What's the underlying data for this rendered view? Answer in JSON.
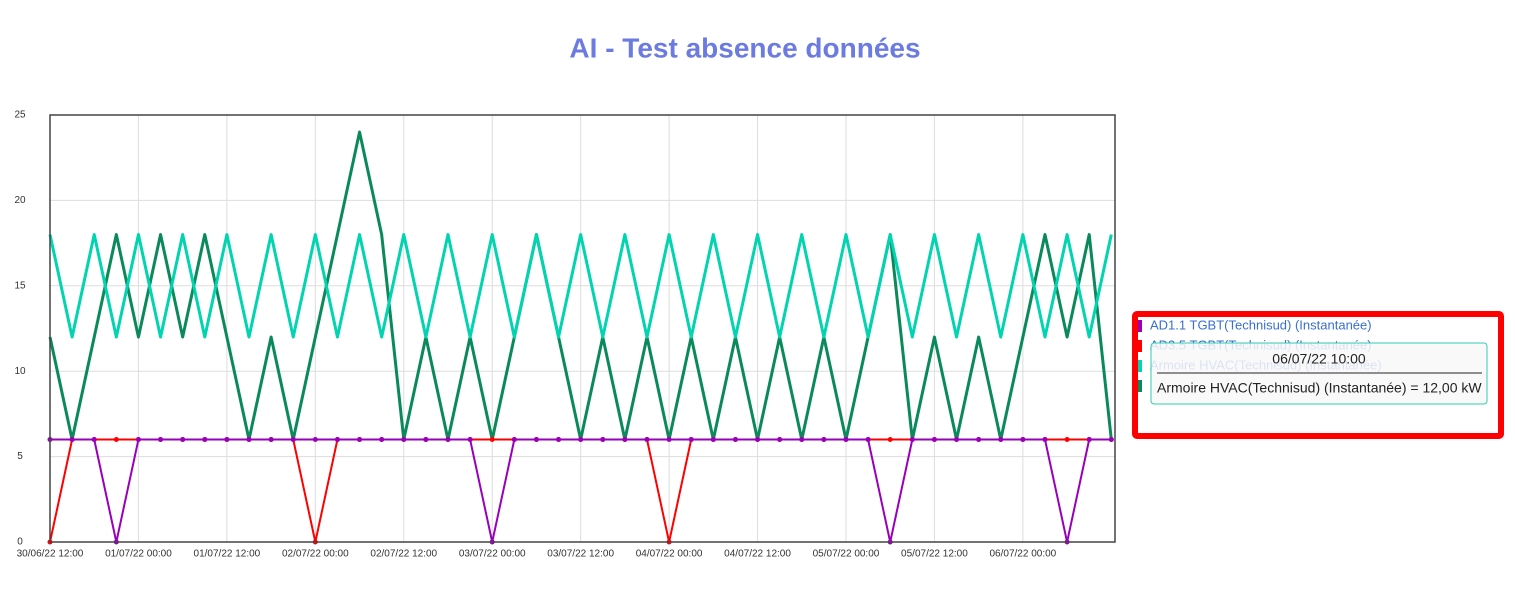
{
  "chart_data": {
    "type": "line",
    "title": "AI - Test absence données",
    "x": [
      "2022-06-30T12:00",
      "2022-06-30T15:00",
      "2022-06-30T18:00",
      "2022-06-30T21:00",
      "2022-07-01T00:00",
      "2022-07-01T03:00",
      "2022-07-01T06:00",
      "2022-07-01T09:00",
      "2022-07-01T12:00",
      "2022-07-01T15:00",
      "2022-07-01T18:00",
      "2022-07-01T21:00",
      "2022-07-02T00:00",
      "2022-07-02T03:00",
      "2022-07-02T06:00",
      "2022-07-02T09:00",
      "2022-07-02T12:00",
      "2022-07-02T15:00",
      "2022-07-02T18:00",
      "2022-07-02T21:00",
      "2022-07-03T00:00",
      "2022-07-03T03:00",
      "2022-07-03T06:00",
      "2022-07-03T09:00",
      "2022-07-03T12:00",
      "2022-07-03T15:00",
      "2022-07-03T18:00",
      "2022-07-03T21:00",
      "2022-07-04T00:00",
      "2022-07-04T03:00",
      "2022-07-04T06:00",
      "2022-07-04T09:00",
      "2022-07-04T12:00",
      "2022-07-04T15:00",
      "2022-07-04T18:00",
      "2022-07-04T21:00",
      "2022-07-05T00:00",
      "2022-07-05T03:00",
      "2022-07-05T06:00",
      "2022-07-05T09:00",
      "2022-07-05T12:00",
      "2022-07-05T15:00",
      "2022-07-05T18:00",
      "2022-07-05T21:00",
      "2022-07-06T00:00",
      "2022-07-06T03:00",
      "2022-07-06T06:00",
      "2022-07-06T09:00",
      "2022-07-06T12:00"
    ],
    "series": [
      {
        "name": "AD1.1 TGBT(Technisud) (Instantanée)",
        "color": "#9900bb",
        "marker": true,
        "values": [
          6,
          6,
          6,
          0,
          6,
          6,
          6,
          6,
          6,
          6,
          6,
          6,
          6,
          6,
          6,
          6,
          6,
          6,
          6,
          6,
          0,
          6,
          6,
          6,
          6,
          6,
          6,
          6,
          6,
          6,
          6,
          6,
          6,
          6,
          6,
          6,
          6,
          6,
          0,
          6,
          6,
          6,
          6,
          6,
          6,
          6,
          0,
          6,
          6
        ]
      },
      {
        "name": "AD3.5 TGBT(Technisud) (Instantanée)",
        "color": "#ff0000",
        "marker": true,
        "values": [
          0,
          6,
          6,
          6,
          6,
          6,
          6,
          6,
          6,
          6,
          6,
          6,
          0,
          6,
          6,
          6,
          6,
          6,
          6,
          6,
          6,
          6,
          6,
          6,
          6,
          6,
          6,
          6,
          0,
          6,
          6,
          6,
          6,
          6,
          6,
          6,
          6,
          6,
          6,
          6,
          6,
          6,
          6,
          6,
          6,
          6,
          6,
          6,
          6
        ]
      },
      {
        "name": "Armoire HVAC(Technisud) (Instantanée)",
        "color": "#00d4b0",
        "marker": false,
        "values": [
          18,
          12,
          18,
          12,
          18,
          12,
          18,
          12,
          18,
          12,
          18,
          12,
          18,
          12,
          18,
          12,
          18,
          12,
          18,
          12,
          18,
          12,
          18,
          12,
          18,
          12,
          18,
          12,
          18,
          12,
          18,
          12,
          18,
          12,
          18,
          12,
          18,
          12,
          18,
          12,
          18,
          12,
          18,
          12,
          18,
          12,
          18,
          12,
          18
        ]
      },
      {
        "color": "#0a8a5a",
        "marker": false,
        "values": [
          12,
          6,
          12,
          18,
          12,
          18,
          12,
          18,
          12,
          6,
          12,
          6,
          12,
          18,
          24,
          18,
          6,
          12,
          6,
          12,
          6,
          12,
          18,
          12,
          6,
          12,
          6,
          12,
          6,
          12,
          6,
          12,
          6,
          12,
          6,
          12,
          6,
          12,
          18,
          6,
          12,
          6,
          12,
          6,
          12,
          18,
          12,
          18,
          6
        ]
      }
    ],
    "xlim": [
      "2022-06-30T12:00",
      "2022-07-06T12:30"
    ],
    "xticks": [
      {
        "value": "2022-06-30T12:00",
        "label": "30/06/22 12:00"
      },
      {
        "value": "2022-07-01T00:00",
        "label": "01/07/22 00:00"
      },
      {
        "value": "2022-07-01T12:00",
        "label": "01/07/22 12:00"
      },
      {
        "value": "2022-07-02T00:00",
        "label": "02/07/22 00:00"
      },
      {
        "value": "2022-07-02T12:00",
        "label": "02/07/22 12:00"
      },
      {
        "value": "2022-07-03T00:00",
        "label": "03/07/22 00:00"
      },
      {
        "value": "2022-07-03T12:00",
        "label": "03/07/22 12:00"
      },
      {
        "value": "2022-07-04T00:00",
        "label": "04/07/22 00:00"
      },
      {
        "value": "2022-07-04T12:00",
        "label": "04/07/22 12:00"
      },
      {
        "value": "2022-07-05T00:00",
        "label": "05/07/22 00:00"
      },
      {
        "value": "2022-07-05T12:00",
        "label": "05/07/22 12:00"
      },
      {
        "value": "2022-07-06T00:00",
        "label": "06/07/22 00:00"
      }
    ],
    "ylim": [
      0,
      25
    ],
    "yticks": [
      0,
      5,
      10,
      15,
      20,
      25
    ],
    "grid": true,
    "legend": "right",
    "tooltip": {
      "title": "06/07/22 10:00",
      "text": "Armoire HVAC(Technisud) (Instantanée) = 12,00 kW"
    }
  }
}
